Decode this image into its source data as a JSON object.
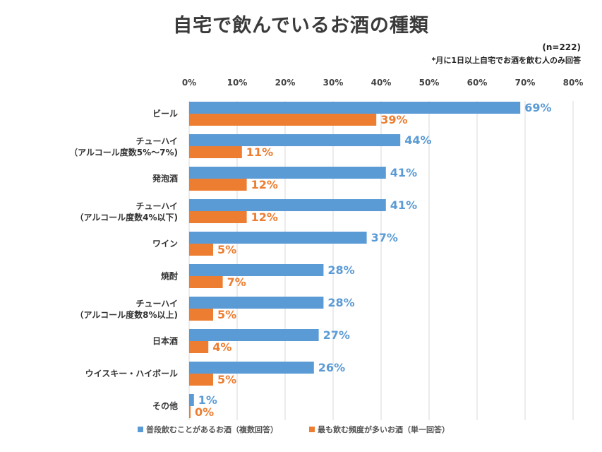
{
  "title": "自宅で飲んでいるお酒の種類",
  "note_n": "(n=222)",
  "note_sub": "*月に1日以上自宅でお酒を飲む人のみ回答",
  "colors": {
    "blue": "#5b9bd5",
    "orange": "#ed7d31",
    "grid": "#d9d9d9"
  },
  "chart_data": {
    "type": "bar",
    "orientation": "horizontal",
    "xlim": [
      0,
      80
    ],
    "ticks": [
      "0%",
      "10%",
      "20%",
      "30%",
      "40%",
      "50%",
      "60%",
      "70%",
      "80%"
    ],
    "tick_values": [
      0,
      10,
      20,
      30,
      40,
      50,
      60,
      70,
      80
    ],
    "categories": [
      [
        "ビール"
      ],
      [
        "チューハイ",
        "（アルコール度数5%～7%)"
      ],
      [
        "発泡酒"
      ],
      [
        "チューハイ",
        "（アルコール度数4%以下)"
      ],
      [
        "ワイン"
      ],
      [
        "焼酎"
      ],
      [
        "チューハイ",
        "（アルコール度数8%以上)"
      ],
      [
        "日本酒"
      ],
      [
        "ウイスキー・ハイボール"
      ],
      [
        "その他"
      ]
    ],
    "series": [
      {
        "name": "普段飲むことがあるお酒（複数回答）",
        "color": "#5b9bd5",
        "values": [
          69,
          44,
          41,
          41,
          37,
          28,
          28,
          27,
          26,
          1
        ],
        "labels": [
          "69%",
          "44%",
          "41%",
          "41%",
          "37%",
          "28%",
          "28%",
          "27%",
          "26%",
          "1%"
        ]
      },
      {
        "name": "最も飲む頻度が多いお酒（単一回答）",
        "color": "#ed7d31",
        "values": [
          39,
          11,
          12,
          12,
          5,
          7,
          5,
          4,
          5,
          0
        ],
        "labels": [
          "39%",
          "11%",
          "12%",
          "12%",
          "5%",
          "7%",
          "5%",
          "4%",
          "5%",
          "0%"
        ]
      }
    ],
    "legend_position": "bottom",
    "grid": true
  }
}
